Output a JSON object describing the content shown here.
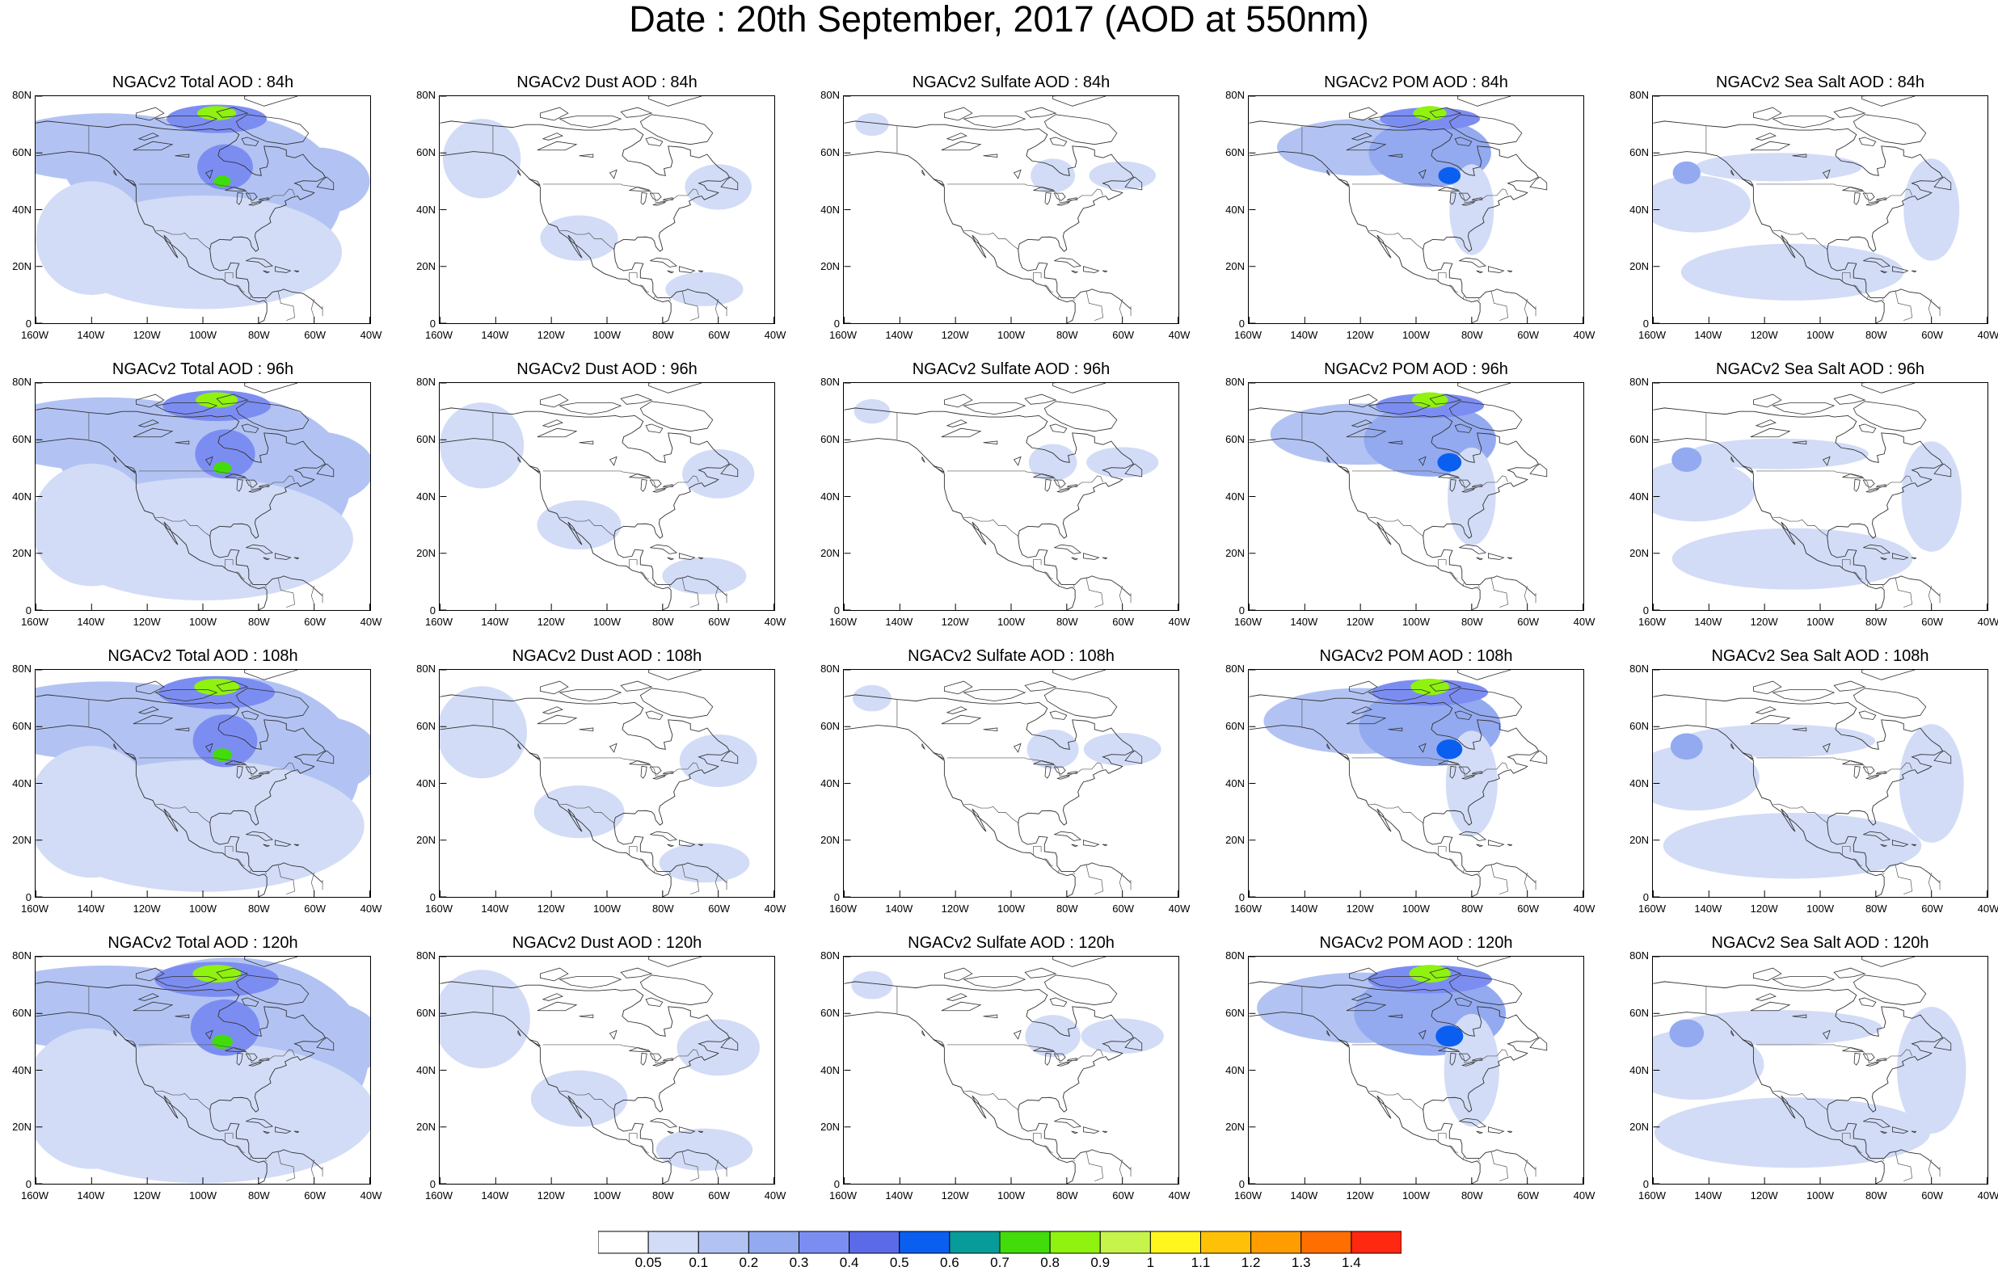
{
  "title": "Date : 20th September, 2017 (AOD at 550nm)",
  "lat_ticks": [
    "80N",
    "60N",
    "40N",
    "20N",
    "0"
  ],
  "lon_ticks": [
    "160W",
    "140W",
    "120W",
    "100W",
    "80W",
    "60W",
    "40W"
  ],
  "species": [
    {
      "key": "total",
      "label": "Total AOD"
    },
    {
      "key": "dust",
      "label": "Dust AOD"
    },
    {
      "key": "sulfate",
      "label": "Sulfate AOD"
    },
    {
      "key": "pom",
      "label": "POM AOD"
    },
    {
      "key": "seasalt",
      "label": "Sea Salt AOD"
    }
  ],
  "forecast_hours": [
    "84h",
    "96h",
    "108h",
    "120h"
  ],
  "panel_titles": [
    [
      "NGACv2 Total AOD : 84h",
      "NGACv2 Dust AOD : 84h",
      "NGACv2 Sulfate AOD : 84h",
      "NGACv2 POM AOD : 84h",
      "NGACv2 Sea Salt AOD : 84h"
    ],
    [
      "NGACv2 Total AOD : 96h",
      "NGACv2 Dust AOD : 96h",
      "NGACv2 Sulfate AOD : 96h",
      "NGACv2 POM AOD : 96h",
      "NGACv2 Sea Salt AOD : 96h"
    ],
    [
      "NGACv2 Total AOD : 108h",
      "NGACv2 Dust AOD : 108h",
      "NGACv2 Sulfate AOD : 108h",
      "NGACv2 POM AOD : 108h",
      "NGACv2 Sea Salt AOD : 108h"
    ],
    [
      "NGACv2 Total AOD : 120h",
      "NGACv2 Dust AOD : 120h",
      "NGACv2 Sulfate AOD : 120h",
      "NGACv2 POM AOD : 120h",
      "NGACv2 Sea Salt  AOD : 120h"
    ]
  ],
  "colorbar": {
    "levels": [
      "0.05",
      "0.1",
      "0.2",
      "0.3",
      "0.4",
      "0.5",
      "0.6",
      "0.7",
      "0.8",
      "0.9",
      "1",
      "1.1",
      "1.2",
      "1.3",
      "1.4"
    ],
    "colors": [
      "#ffffff",
      "#d2dcf7",
      "#b2c3f3",
      "#93aaf0",
      "#7c8df2",
      "#5b6be8",
      "#0a5ff0",
      "#079b99",
      "#42dc0b",
      "#8ff20f",
      "#c6f44a",
      "#fff61e",
      "#ffc107",
      "#ff9d00",
      "#ff6e00",
      "#ff2810"
    ]
  },
  "map_extent": {
    "lon_min": -160,
    "lon_max": -40,
    "lat_min": 0,
    "lat_max": 80
  },
  "map_colors": {
    "coast": "#303030",
    "frame": "#000000",
    "background": "#ffffff"
  }
}
